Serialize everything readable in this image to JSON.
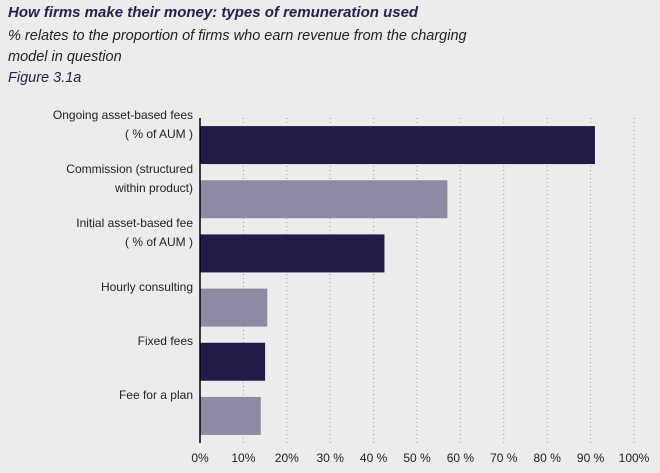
{
  "chart_data": {
    "type": "barh",
    "title": "How firms make their money: types of remuneration used",
    "subtitle": "% relates to the proportion of firms who earn revenue from the charging\nmodel in question",
    "figure_label": "Figure 3.1a",
    "categories": [
      "Ongoing asset-based fees\n( % of AUM )",
      "Commission (structured\nwithin product)",
      "Initial asset-based fee\n( % of AUM )",
      "Hourly consulting",
      "Fixed fees",
      "Fee for a plan"
    ],
    "values": [
      91,
      57,
      42.5,
      15.5,
      15,
      14
    ],
    "colors": [
      "#241a4a",
      "#8f89a3",
      "#241a4a",
      "#8f89a3",
      "#241a4a",
      "#8f89a3"
    ],
    "xlim": [
      0,
      100
    ],
    "xticks": [
      {
        "value": 0,
        "label": "0%"
      },
      {
        "value": 10,
        "label": "10%"
      },
      {
        "value": 20,
        "label": "20%"
      },
      {
        "value": 30,
        "label": "30 %"
      },
      {
        "value": 40,
        "label": "40 %"
      },
      {
        "value": 50,
        "label": "50 %"
      },
      {
        "value": 60,
        "label": "60 %"
      },
      {
        "value": 70,
        "label": "70 %"
      },
      {
        "value": 80,
        "label": "80 %"
      },
      {
        "value": 90,
        "label": "90 %"
      },
      {
        "value": 100,
        "label": "100%"
      }
    ],
    "grid": true
  }
}
